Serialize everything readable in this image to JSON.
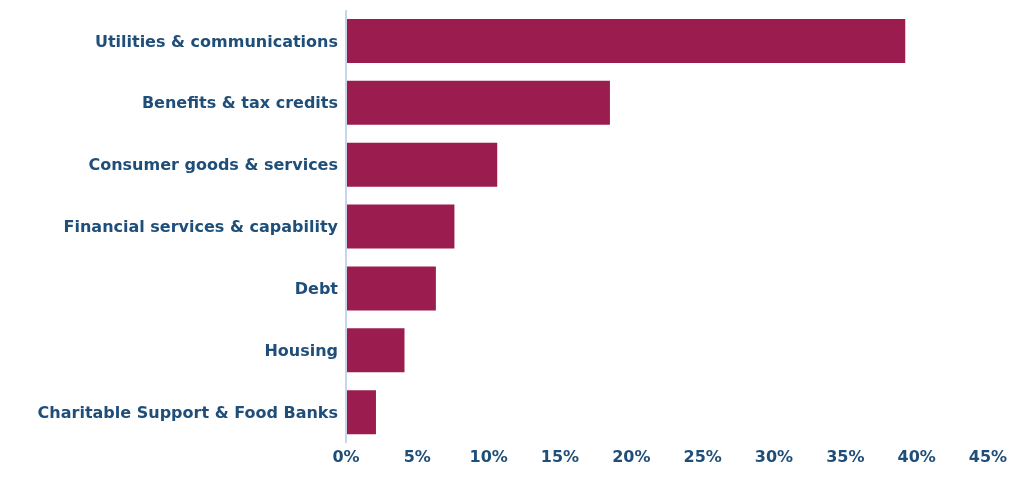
{
  "chart_data": {
    "type": "bar",
    "orientation": "horizontal",
    "categories": [
      "Utilities & communications",
      "Benefits & tax credits",
      "Consumer goods & services",
      "Financial services & capability",
      "Debt",
      "Housing",
      "Charitable Support & Food Banks"
    ],
    "values": [
      39.2,
      18.5,
      10.6,
      7.6,
      6.3,
      4.1,
      2.1
    ],
    "color": "#9b1c4e",
    "xlim": [
      0,
      45
    ],
    "xticks": [
      {
        "value": 0,
        "label": "0%"
      },
      {
        "value": 5,
        "label": "5%"
      },
      {
        "value": 10,
        "label": "10%"
      },
      {
        "value": 15,
        "label": "15%"
      },
      {
        "value": 20,
        "label": "20%"
      },
      {
        "value": 25,
        "label": "25%"
      },
      {
        "value": 30,
        "label": "30%"
      },
      {
        "value": 35,
        "label": "35%"
      },
      {
        "value": 40,
        "label": "40%"
      },
      {
        "value": 45,
        "label": "45%"
      }
    ],
    "grid": false,
    "legend": false
  }
}
